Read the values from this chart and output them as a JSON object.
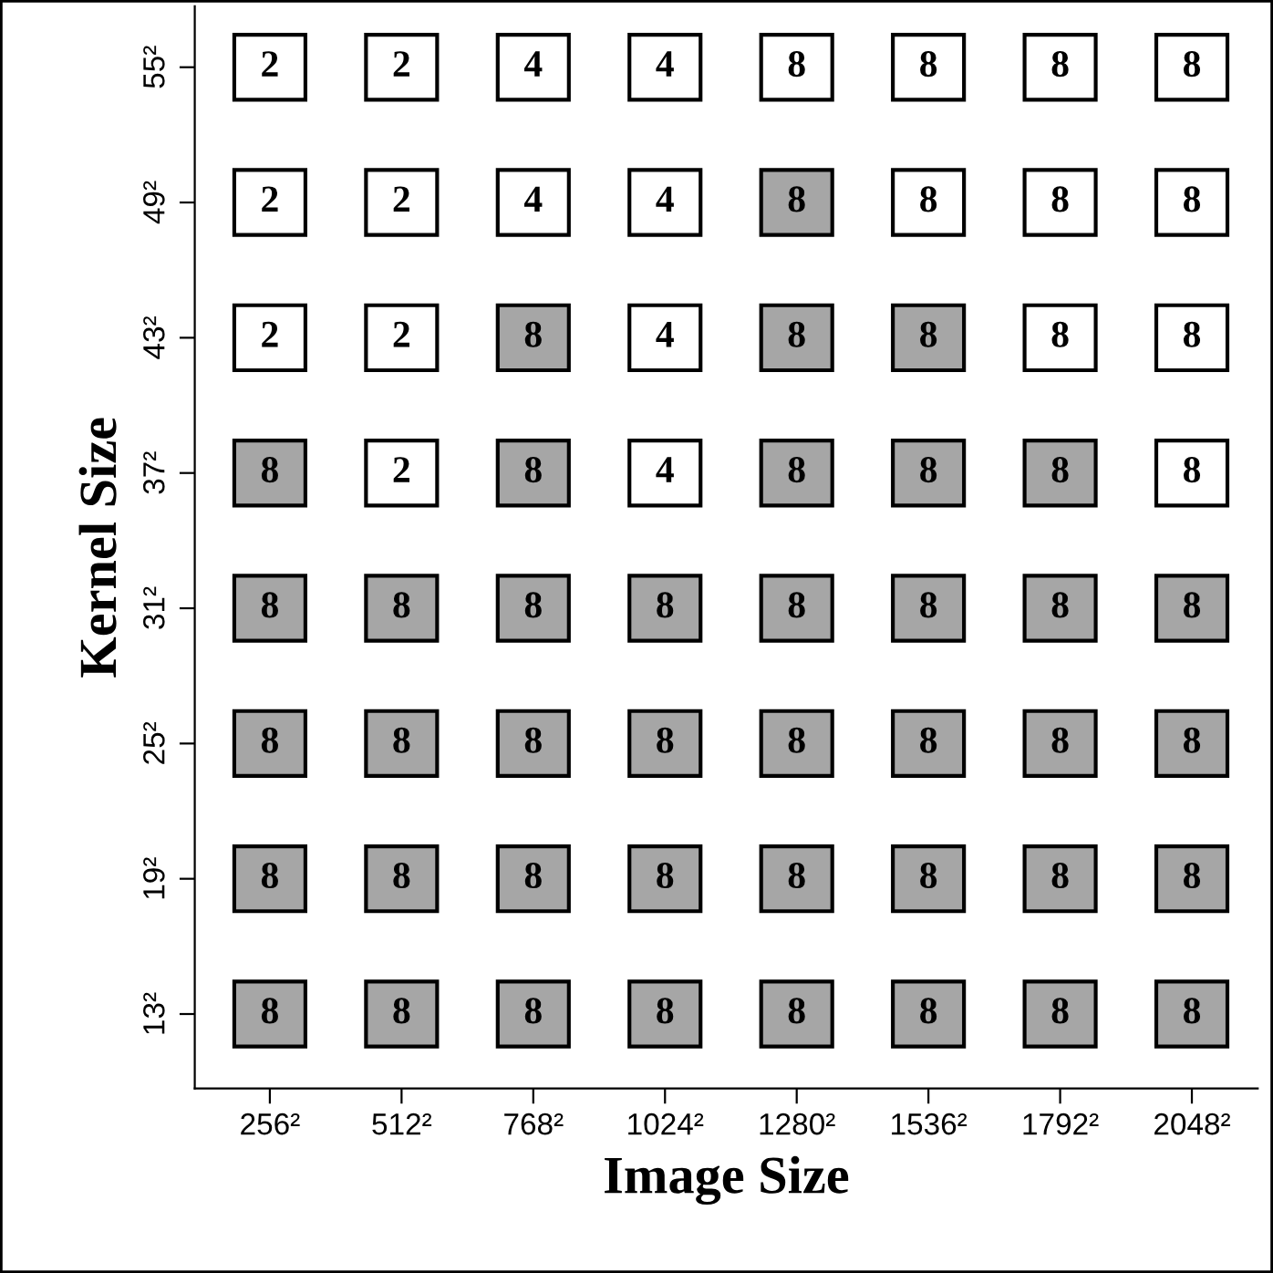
{
  "chart_data": {
    "type": "heatmap",
    "data_labels": true,
    "xlabel": "Image Size",
    "ylabel": "Kernel Size",
    "categories": [
      "256²",
      "512²",
      "768²",
      "1024²",
      "1280²",
      "1536²",
      "1792²",
      "2048²"
    ],
    "y_categories": [
      "55²",
      "49²",
      "43²",
      "37²",
      "31²",
      "25²",
      "19²",
      "13²"
    ],
    "cells": [
      [
        2,
        2,
        4,
        4,
        8,
        8,
        8,
        8
      ],
      [
        2,
        2,
        4,
        4,
        8,
        8,
        8,
        8
      ],
      [
        2,
        2,
        8,
        4,
        8,
        8,
        8,
        8
      ],
      [
        8,
        2,
        8,
        4,
        8,
        8,
        8,
        8
      ],
      [
        8,
        8,
        8,
        8,
        8,
        8,
        8,
        8
      ],
      [
        8,
        8,
        8,
        8,
        8,
        8,
        8,
        8
      ],
      [
        8,
        8,
        8,
        8,
        8,
        8,
        8,
        8
      ],
      [
        8,
        8,
        8,
        8,
        8,
        8,
        8,
        8
      ]
    ],
    "colors": [
      [
        "#ffffff",
        "#ffffff",
        "#ffffff",
        "#ffffff",
        "#ffffff",
        "#ffffff",
        "#ffffff",
        "#ffffff"
      ],
      [
        "#ffffff",
        "#ffffff",
        "#ffffff",
        "#ffffff",
        "#a6a6a6",
        "#ffffff",
        "#ffffff",
        "#ffffff"
      ],
      [
        "#ffffff",
        "#ffffff",
        "#a6a6a6",
        "#ffffff",
        "#a6a6a6",
        "#a6a6a6",
        "#ffffff",
        "#ffffff"
      ],
      [
        "#a6a6a6",
        "#ffffff",
        "#a6a6a6",
        "#ffffff",
        "#a6a6a6",
        "#a6a6a6",
        "#a6a6a6",
        "#ffffff"
      ],
      [
        "#a6a6a6",
        "#a6a6a6",
        "#a6a6a6",
        "#a6a6a6",
        "#a6a6a6",
        "#a6a6a6",
        "#a6a6a6",
        "#a6a6a6"
      ],
      [
        "#a6a6a6",
        "#a6a6a6",
        "#a6a6a6",
        "#a6a6a6",
        "#a6a6a6",
        "#a6a6a6",
        "#a6a6a6",
        "#a6a6a6"
      ],
      [
        "#a6a6a6",
        "#a6a6a6",
        "#a6a6a6",
        "#a6a6a6",
        "#a6a6a6",
        "#a6a6a6",
        "#a6a6a6",
        "#a6a6a6"
      ],
      [
        "#a6a6a6",
        "#a6a6a6",
        "#a6a6a6",
        "#a6a6a6",
        "#a6a6a6",
        "#a6a6a6",
        "#a6a6a6",
        "#a6a6a6"
      ]
    ]
  }
}
